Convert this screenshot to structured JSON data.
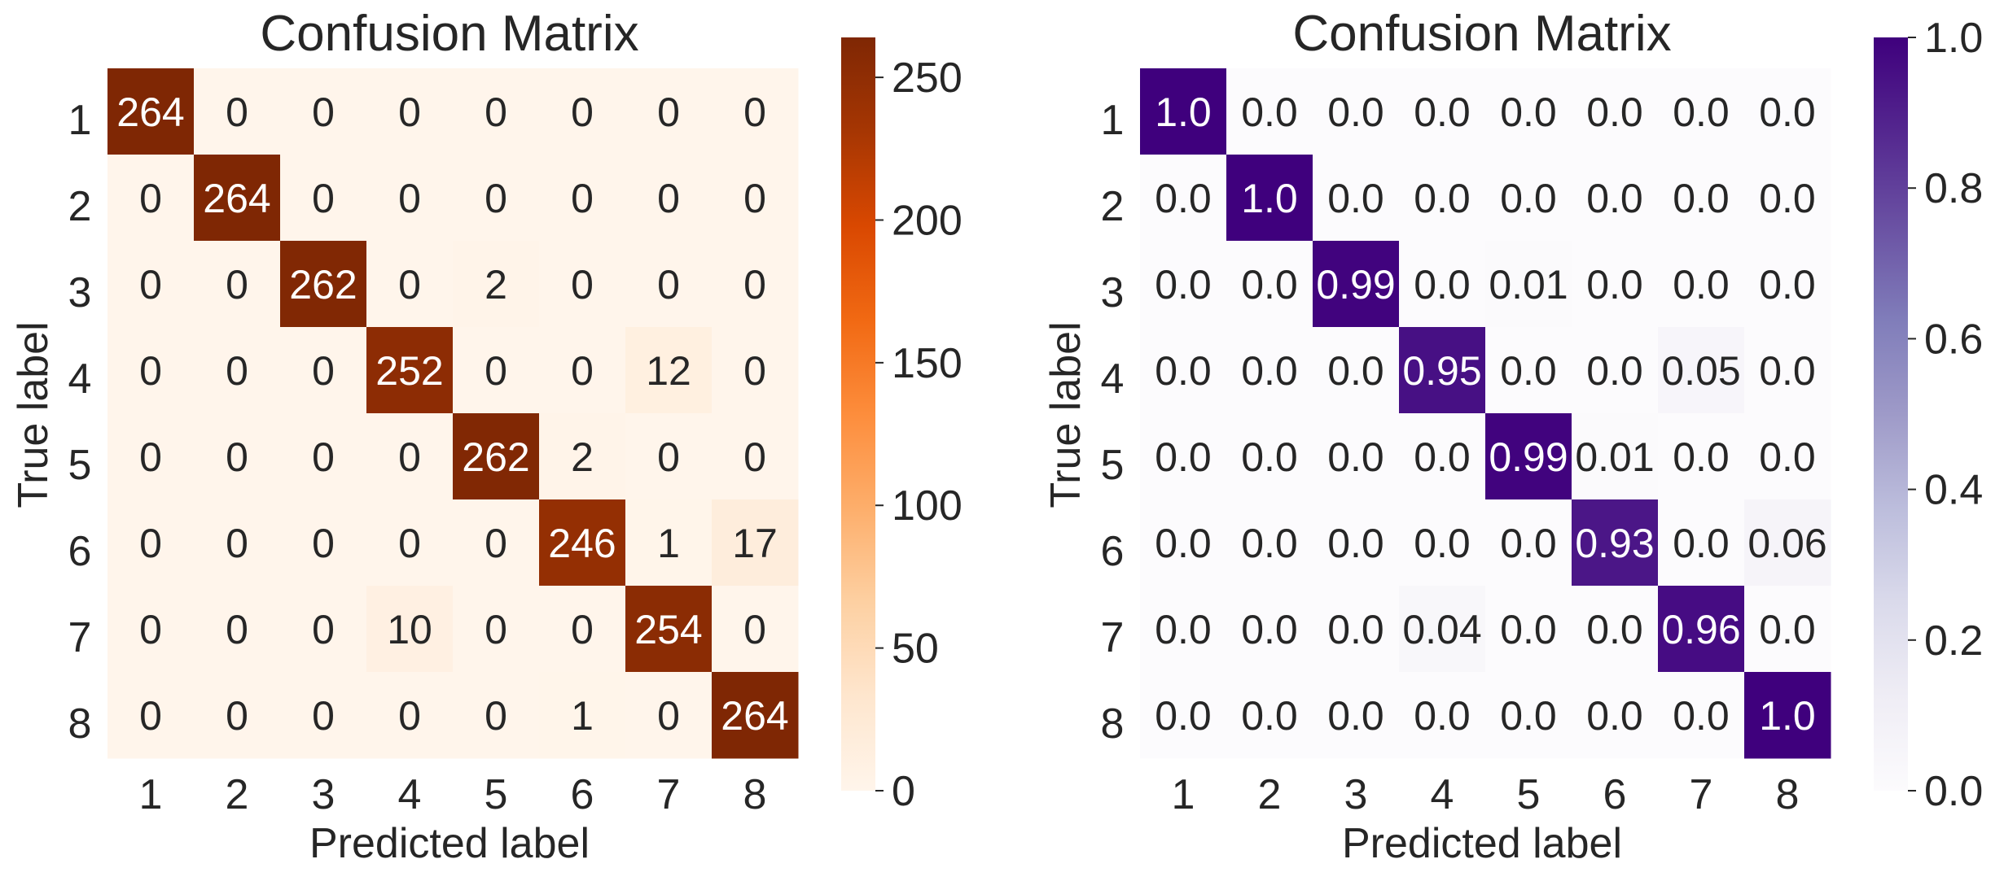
{
  "chart_data": [
    {
      "type": "heatmap",
      "title": "Confusion Matrix",
      "xlabel": "Predicted label",
      "ylabel": "True label",
      "x_categories": [
        "1",
        "2",
        "3",
        "4",
        "5",
        "6",
        "7",
        "8"
      ],
      "y_categories": [
        "1",
        "2",
        "3",
        "4",
        "5",
        "6",
        "7",
        "8"
      ],
      "values": [
        [
          264,
          0,
          0,
          0,
          0,
          0,
          0,
          0
        ],
        [
          0,
          264,
          0,
          0,
          0,
          0,
          0,
          0
        ],
        [
          0,
          0,
          262,
          0,
          2,
          0,
          0,
          0
        ],
        [
          0,
          0,
          0,
          252,
          0,
          0,
          12,
          0
        ],
        [
          0,
          0,
          0,
          0,
          262,
          2,
          0,
          0
        ],
        [
          0,
          0,
          0,
          0,
          0,
          246,
          1,
          17
        ],
        [
          0,
          0,
          0,
          10,
          0,
          0,
          254,
          0
        ],
        [
          0,
          0,
          0,
          0,
          0,
          1,
          0,
          264
        ]
      ],
      "cell_labels": [
        [
          "264",
          "0",
          "0",
          "0",
          "0",
          "0",
          "0",
          "0"
        ],
        [
          "0",
          "264",
          "0",
          "0",
          "0",
          "0",
          "0",
          "0"
        ],
        [
          "0",
          "0",
          "262",
          "0",
          "2",
          "0",
          "0",
          "0"
        ],
        [
          "0",
          "0",
          "0",
          "252",
          "0",
          "0",
          "12",
          "0"
        ],
        [
          "0",
          "0",
          "0",
          "0",
          "262",
          "2",
          "0",
          "0"
        ],
        [
          "0",
          "0",
          "0",
          "0",
          "0",
          "246",
          "1",
          "17"
        ],
        [
          "0",
          "0",
          "0",
          "10",
          "0",
          "0",
          "254",
          "0"
        ],
        [
          "0",
          "0",
          "0",
          "0",
          "0",
          "1",
          "0",
          "264"
        ]
      ],
      "colormap": "Oranges",
      "colormap_stops": [
        "#fff5eb",
        "#fee6ce",
        "#fdd0a2",
        "#fdae6b",
        "#fd8d3c",
        "#f16913",
        "#d94801",
        "#a63603",
        "#7f2704"
      ],
      "colorbar_range": [
        0,
        264
      ],
      "colorbar_ticks": [
        0,
        50,
        100,
        150,
        200,
        250
      ],
      "colorbar_tick_labels": [
        "0",
        "50",
        "100",
        "150",
        "200",
        "250"
      ]
    },
    {
      "type": "heatmap",
      "title": "Confusion Matrix",
      "xlabel": "Predicted label",
      "ylabel": "True label",
      "x_categories": [
        "1",
        "2",
        "3",
        "4",
        "5",
        "6",
        "7",
        "8"
      ],
      "y_categories": [
        "1",
        "2",
        "3",
        "4",
        "5",
        "6",
        "7",
        "8"
      ],
      "values": [
        [
          1.0,
          0.0,
          0.0,
          0.0,
          0.0,
          0.0,
          0.0,
          0.0
        ],
        [
          0.0,
          1.0,
          0.0,
          0.0,
          0.0,
          0.0,
          0.0,
          0.0
        ],
        [
          0.0,
          0.0,
          0.99,
          0.0,
          0.01,
          0.0,
          0.0,
          0.0
        ],
        [
          0.0,
          0.0,
          0.0,
          0.95,
          0.0,
          0.0,
          0.05,
          0.0
        ],
        [
          0.0,
          0.0,
          0.0,
          0.0,
          0.99,
          0.01,
          0.0,
          0.0
        ],
        [
          0.0,
          0.0,
          0.0,
          0.0,
          0.0,
          0.93,
          0.0,
          0.06
        ],
        [
          0.0,
          0.0,
          0.0,
          0.04,
          0.0,
          0.0,
          0.96,
          0.0
        ],
        [
          0.0,
          0.0,
          0.0,
          0.0,
          0.0,
          0.0,
          0.0,
          1.0
        ]
      ],
      "cell_labels": [
        [
          "1.0",
          "0.0",
          "0.0",
          "0.0",
          "0.0",
          "0.0",
          "0.0",
          "0.0"
        ],
        [
          "0.0",
          "1.0",
          "0.0",
          "0.0",
          "0.0",
          "0.0",
          "0.0",
          "0.0"
        ],
        [
          "0.0",
          "0.0",
          "0.99",
          "0.0",
          "0.01",
          "0.0",
          "0.0",
          "0.0"
        ],
        [
          "0.0",
          "0.0",
          "0.0",
          "0.95",
          "0.0",
          "0.0",
          "0.05",
          "0.0"
        ],
        [
          "0.0",
          "0.0",
          "0.0",
          "0.0",
          "0.99",
          "0.01",
          "0.0",
          "0.0"
        ],
        [
          "0.0",
          "0.0",
          "0.0",
          "0.0",
          "0.0",
          "0.93",
          "0.0",
          "0.06"
        ],
        [
          "0.0",
          "0.0",
          "0.0",
          "0.04",
          "0.0",
          "0.0",
          "0.96",
          "0.0"
        ],
        [
          "0.0",
          "0.0",
          "0.0",
          "0.0",
          "0.0",
          "0.0",
          "0.0",
          "1.0"
        ]
      ],
      "colormap": "Purples",
      "colormap_stops": [
        "#fcfbfd",
        "#efedf5",
        "#dadaeb",
        "#bcbddc",
        "#9e9ac8",
        "#807dba",
        "#6a51a3",
        "#54278f",
        "#3f007d"
      ],
      "colorbar_range": [
        0,
        1
      ],
      "colorbar_ticks": [
        0,
        0.2,
        0.4,
        0.6,
        0.8,
        1.0
      ],
      "colorbar_tick_labels": [
        "0.0",
        "0.2",
        "0.4",
        "0.6",
        "0.8",
        "1.0"
      ]
    }
  ]
}
